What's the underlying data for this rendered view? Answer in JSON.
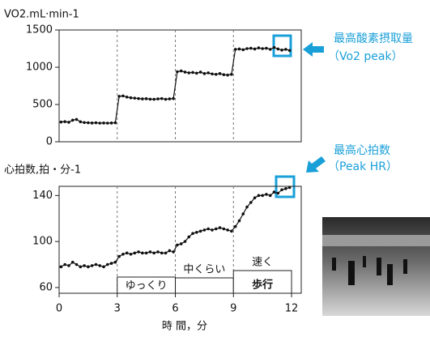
{
  "chart_data": [
    {
      "type": "line",
      "y_label": "VO2.mL·min-1",
      "color": "#111111",
      "x": [
        0.1,
        0.3,
        0.5,
        0.7,
        0.9,
        1.1,
        1.3,
        1.5,
        1.7,
        1.9,
        2.1,
        2.3,
        2.5,
        2.7,
        2.9,
        3.1,
        3.3,
        3.5,
        3.7,
        3.9,
        4.1,
        4.3,
        4.5,
        4.7,
        4.9,
        5.1,
        5.3,
        5.5,
        5.7,
        5.9,
        6.1,
        6.3,
        6.5,
        6.7,
        6.9,
        7.1,
        7.3,
        7.5,
        7.7,
        7.9,
        8.1,
        8.3,
        8.5,
        8.7,
        8.9,
        9.1,
        9.3,
        9.5,
        9.7,
        9.9,
        10.1,
        10.3,
        10.5,
        10.7,
        10.9,
        11.1,
        11.3,
        11.5,
        11.7,
        11.9
      ],
      "values": [
        265,
        270,
        262,
        290,
        300,
        268,
        258,
        255,
        252,
        255,
        250,
        252,
        250,
        252,
        255,
        610,
        615,
        600,
        590,
        585,
        580,
        575,
        578,
        572,
        570,
        575,
        580,
        570,
        575,
        580,
        940,
        950,
        935,
        925,
        930,
        920,
        935,
        915,
        925,
        910,
        905,
        915,
        900,
        895,
        905,
        1240,
        1245,
        1235,
        1250,
        1255,
        1245,
        1260,
        1250,
        1255,
        1240,
        1265,
        1245,
        1230,
        1240,
        1225
      ],
      "xlim": [
        0,
        12.5
      ],
      "xticks": [
        0,
        3,
        6,
        9,
        12
      ],
      "xtick_labels": false,
      "ylim": [
        0,
        1500
      ],
      "yticks": [
        0,
        500,
        1000,
        1500
      ],
      "annotation": [
        "最高酸素摂取量",
        "（Vo2 peak）"
      ]
    },
    {
      "type": "line",
      "y_label": "心拍数,拍・分-1",
      "x_label": "時 間，分",
      "color": "#111111",
      "x": [
        0.1,
        0.3,
        0.5,
        0.7,
        0.9,
        1.1,
        1.3,
        1.5,
        1.7,
        1.9,
        2.1,
        2.3,
        2.5,
        2.7,
        2.9,
        3.1,
        3.3,
        3.5,
        3.7,
        3.9,
        4.1,
        4.3,
        4.5,
        4.7,
        4.9,
        5.1,
        5.3,
        5.5,
        5.7,
        5.9,
        6.1,
        6.3,
        6.5,
        6.7,
        6.9,
        7.1,
        7.3,
        7.5,
        7.7,
        7.9,
        8.1,
        8.3,
        8.5,
        8.7,
        8.9,
        9.1,
        9.3,
        9.5,
        9.7,
        9.9,
        10.1,
        10.3,
        10.5,
        10.7,
        10.9,
        11.1,
        11.3,
        11.5,
        11.7,
        11.9
      ],
      "values": [
        78,
        80,
        79,
        82,
        80,
        78,
        79,
        78,
        79,
        80,
        79,
        78,
        80,
        81,
        82,
        87,
        89,
        90,
        89,
        90,
        91,
        90,
        90,
        91,
        90,
        91,
        90,
        90,
        92,
        91,
        97,
        98,
        100,
        104,
        107,
        108,
        109,
        110,
        111,
        110,
        111,
        112,
        111,
        110,
        109,
        113,
        118,
        124,
        130,
        134,
        138,
        140,
        140,
        141,
        140,
        143,
        142,
        145,
        146,
        147
      ],
      "xlim": [
        0,
        12.5
      ],
      "xticks": [
        0,
        3,
        6,
        9,
        12
      ],
      "xtick_labels": true,
      "ylim": [
        55,
        148
      ],
      "yticks": [
        60,
        100,
        140
      ],
      "stages": [
        "ゆっくり",
        "中くらい",
        "速く"
      ],
      "stage_caption": "歩行",
      "annotation": [
        "最高心拍数",
        "（Peak HR）"
      ]
    }
  ]
}
